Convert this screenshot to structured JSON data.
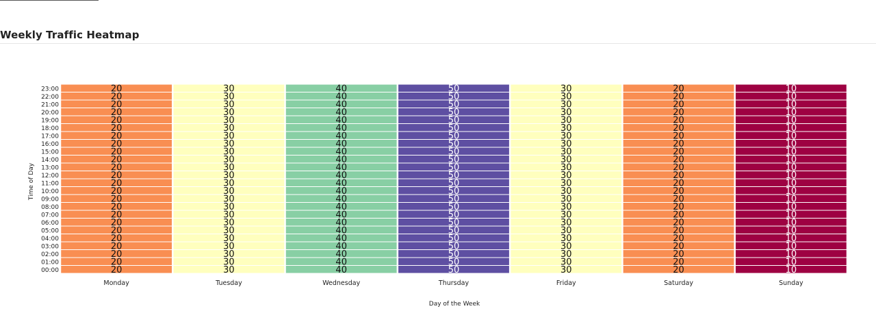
{
  "page": {
    "title": "Weekly Traffic Heatmap"
  },
  "chart_data": {
    "type": "heatmap",
    "title": "Weekly Traffic Heatmap",
    "xlabel": "Day of the Week",
    "ylabel": "Time of Day",
    "x": [
      "Monday",
      "Tuesday",
      "Wednesday",
      "Thursday",
      "Friday",
      "Saturday",
      "Sunday"
    ],
    "y": [
      "00:00",
      "01:00",
      "02:00",
      "03:00",
      "04:00",
      "05:00",
      "06:00",
      "07:00",
      "08:00",
      "09:00",
      "10:00",
      "11:00",
      "12:00",
      "13:00",
      "14:00",
      "15:00",
      "16:00",
      "17:00",
      "18:00",
      "19:00",
      "20:00",
      "21:00",
      "22:00",
      "23:00"
    ],
    "values_by_day": [
      20,
      30,
      40,
      50,
      30,
      20,
      10
    ],
    "colorscale": {
      "10": "#9e0142",
      "20": "#f98e52",
      "30": "#ffffbe",
      "40": "#88cfa4",
      "50": "#5e4fa2"
    },
    "label_colors": {
      "dark": "#111111",
      "light": "#ffffff"
    },
    "grid": false
  }
}
